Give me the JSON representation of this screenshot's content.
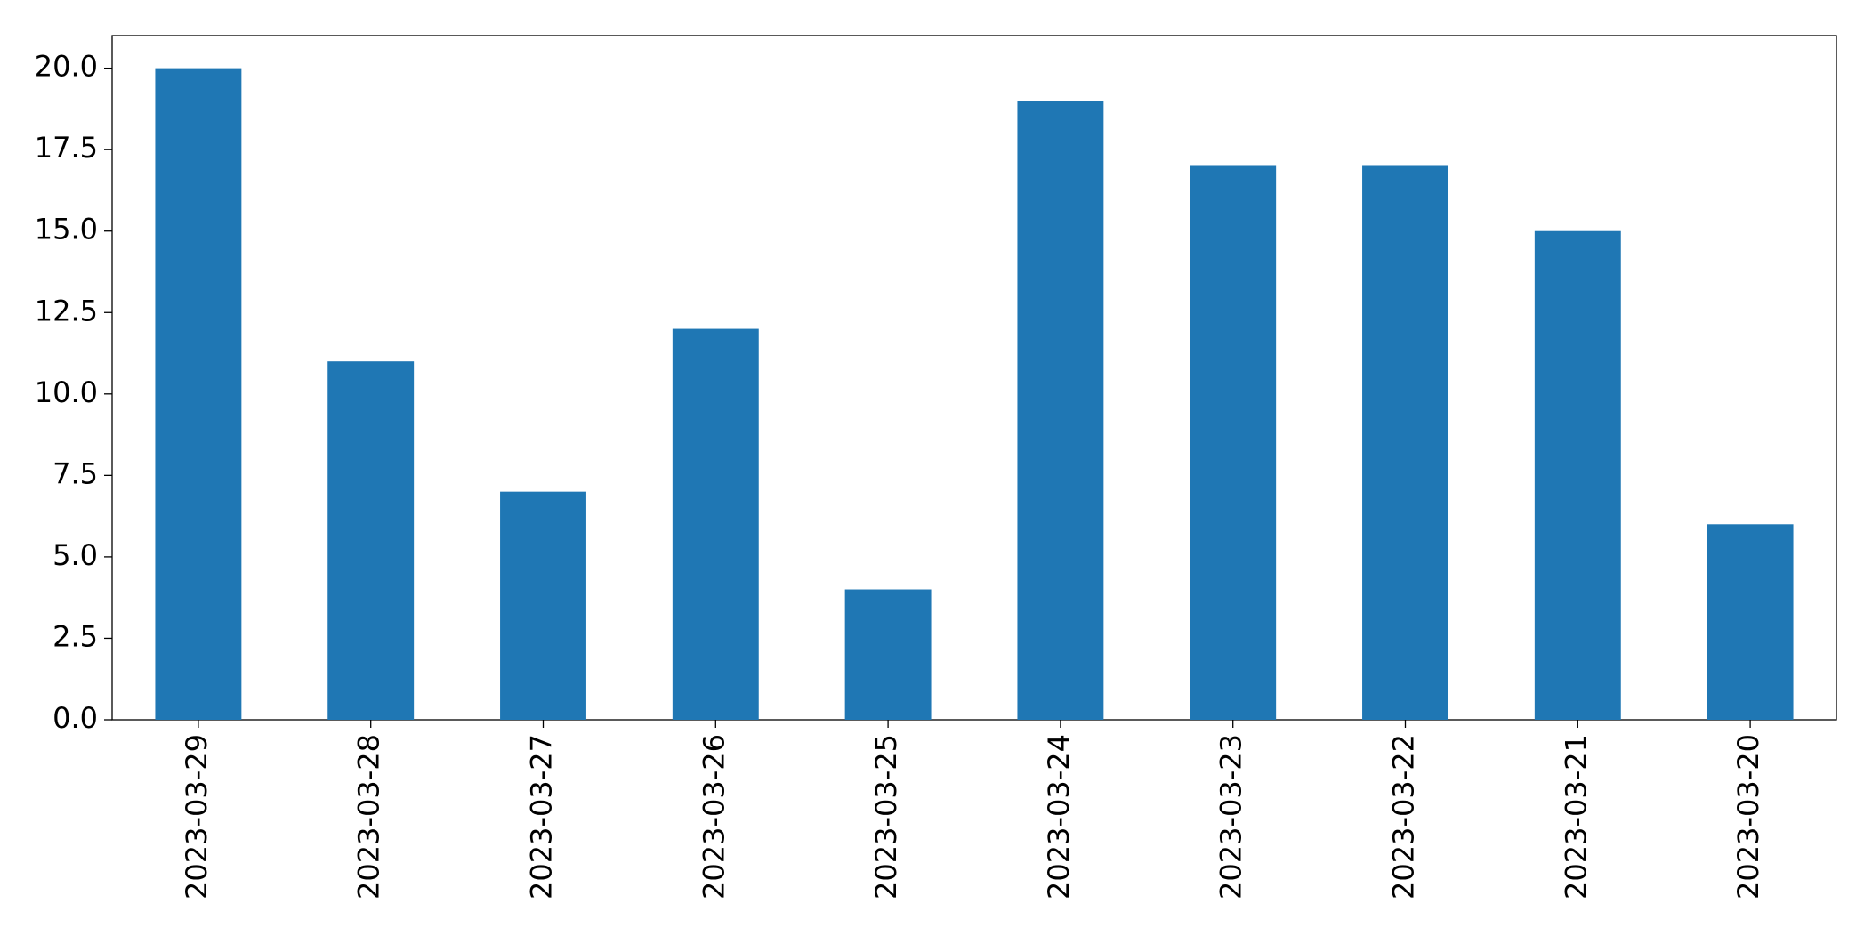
{
  "chart_data": {
    "type": "bar",
    "categories": [
      "2023-03-29",
      "2023-03-28",
      "2023-03-27",
      "2023-03-26",
      "2023-03-25",
      "2023-03-24",
      "2023-03-23",
      "2023-03-22",
      "2023-03-21",
      "2023-03-20"
    ],
    "values": [
      20,
      11,
      7,
      12,
      4,
      19,
      17,
      17,
      15,
      6
    ],
    "color": "#1f77b4",
    "ylim": [
      0,
      21
    ],
    "yticks": [
      {
        "value": 0,
        "label": "0.0"
      },
      2.5,
      {
        "value": 5,
        "label": "5.0"
      },
      7.5,
      {
        "value": 10,
        "label": "10.0"
      },
      12.5,
      {
        "value": 15,
        "label": "15.0"
      },
      17.5,
      {
        "value": 20,
        "label": "20.0"
      }
    ],
    "grid": false
  }
}
